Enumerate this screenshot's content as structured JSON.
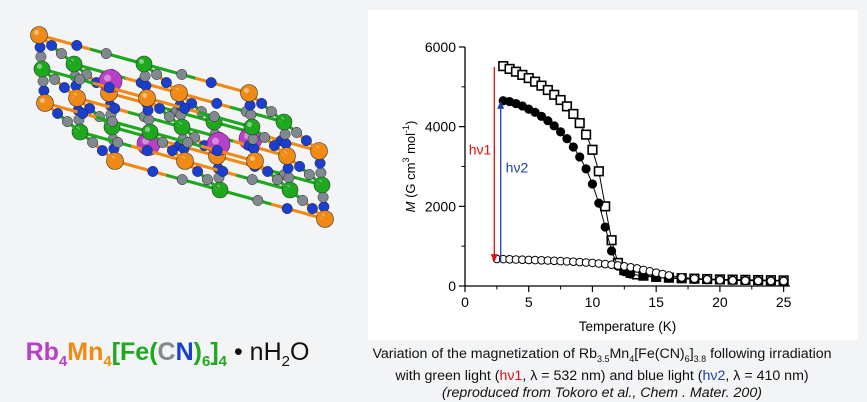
{
  "crystal": {
    "formula": {
      "rb": "Rb",
      "rb_sub": "4",
      "mn": "Mn",
      "mn_sub": "4",
      "lb": "[",
      "fe": "Fe",
      "lp": "(",
      "c": "C",
      "n": "N",
      "rp": ")",
      "cn_sub": "6",
      "rb_close": "]",
      "outer_sub": "4",
      "hydrate": " • nH",
      "h2o_sub": "2",
      "o": "O"
    },
    "colors": {
      "rb": "#b83fc7",
      "mn": "#f08a14",
      "fe": "#1da81d",
      "c": "#808890",
      "n": "#1a3fd0"
    }
  },
  "chart_data": {
    "type": "scatter",
    "xlabel": "Temperature (K)",
    "ylabel_M": "M",
    "ylabel_units": " (G cm",
    "ylabel_sup1": "3",
    "ylabel_mol": " mol",
    "ylabel_sup2": "-1",
    "ylabel_close": ")",
    "xlim": [
      0,
      25.5
    ],
    "ylim": [
      0,
      6000
    ],
    "x_ticks": [
      0,
      5,
      10,
      15,
      20,
      25
    ],
    "y_ticks": [
      0,
      2000,
      4000,
      6000
    ],
    "grid": false,
    "series": [
      {
        "marker": "open-square",
        "x": [
          3,
          3.5,
          4,
          4.5,
          5,
          5.5,
          6,
          6.5,
          7,
          7.5,
          8,
          8.5,
          9,
          9.5,
          10,
          10.5,
          11,
          11.5,
          12,
          12.5,
          13,
          13.5,
          14,
          15,
          16,
          17,
          18,
          19,
          20,
          21,
          22,
          23,
          24,
          25
        ],
        "y": [
          5520,
          5450,
          5380,
          5300,
          5220,
          5130,
          5030,
          4920,
          4800,
          4670,
          4510,
          4320,
          4090,
          3800,
          3420,
          2880,
          2000,
          1150,
          580,
          400,
          330,
          290,
          260,
          230,
          210,
          195,
          185,
          175,
          165,
          160,
          155,
          150,
          145,
          140
        ]
      },
      {
        "marker": "filled-circle",
        "x": [
          3,
          3.5,
          4,
          4.5,
          5,
          5.5,
          6,
          6.5,
          7,
          7.5,
          8,
          8.5,
          9,
          9.5,
          10,
          10.5,
          11,
          11.5,
          12,
          12.5,
          13,
          14,
          15,
          16,
          17,
          18,
          19,
          20,
          21,
          22,
          23,
          24,
          25
        ],
        "y": [
          4650,
          4630,
          4580,
          4520,
          4440,
          4360,
          4260,
          4150,
          4020,
          3870,
          3700,
          3490,
          3240,
          2940,
          2560,
          2080,
          1480,
          880,
          500,
          360,
          300,
          250,
          215,
          195,
          180,
          170,
          160,
          150,
          145,
          140,
          135,
          130,
          125
        ]
      },
      {
        "marker": "open-circle",
        "x": [
          2.5,
          3,
          3.5,
          4,
          4.5,
          5,
          5.5,
          6,
          6.5,
          7,
          7.5,
          8,
          8.5,
          9,
          9.5,
          10,
          10.5,
          11,
          11.5,
          12,
          12.5,
          13,
          13.5,
          14,
          14.5,
          15,
          15.5,
          16,
          17,
          18,
          19,
          20,
          21,
          22,
          23,
          24,
          25
        ],
        "y": [
          680,
          675,
          670,
          665,
          660,
          655,
          650,
          645,
          640,
          632,
          625,
          618,
          610,
          600,
          590,
          580,
          565,
          550,
          535,
          515,
          495,
          470,
          440,
          405,
          370,
          335,
          300,
          265,
          215,
          185,
          165,
          150,
          140,
          135,
          130,
          128,
          125
        ]
      }
    ],
    "annotations": [
      {
        "text": "hν1",
        "color": "#e01010",
        "x": 2.3,
        "y_from": 5500,
        "y_to": 600
      },
      {
        "text": "hν2",
        "color": "#1c3fae",
        "x": 2.8,
        "y_from": 600,
        "y_to": 4650
      }
    ]
  },
  "caption": {
    "l1a": "Variation of the magnetization of Rb",
    "l1s1": "3.5",
    "l1b": "Mn",
    "l1s2": "4",
    "l1c": "[Fe(CN)",
    "l1s3": "6",
    "l1d": "]",
    "l1s4": "3.8",
    "l1e": " following irradiation",
    "l2a": "with green light (",
    "l2b": "hν1",
    "l2c": ", λ = 532 nm) and blue light (",
    "l2d": "hν2",
    "l2e": ", λ = 410 nm)",
    "l3": "(reproduced from Tokoro et al., Chem . Mater. 200)"
  }
}
